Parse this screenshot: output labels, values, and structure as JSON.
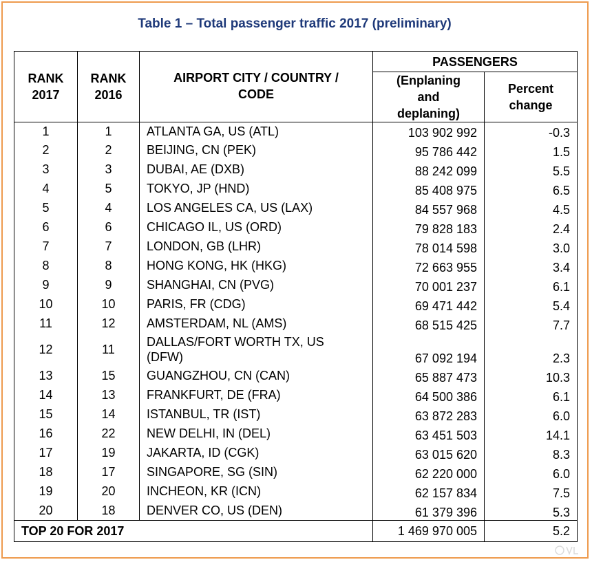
{
  "title": "Table 1 – Total passenger traffic 2017 (preliminary)",
  "headers": {
    "rank_2017": "RANK 2017",
    "rank_2017_line1": "RANK",
    "rank_2017_line2": "2017",
    "rank_2016_line1": "RANK",
    "rank_2016_line2": "2016",
    "airport_line1": "AIRPORT CITY / COUNTRY /",
    "airport_line2": "CODE",
    "passengers": "PASSENGERS",
    "enplaning_line1": "(Enplaning",
    "enplaning_line2": "and",
    "enplaning_line3": "deplaning)",
    "percent_line1": "Percent",
    "percent_line2": "change"
  },
  "rows": [
    {
      "rank2017": "1",
      "rank2016": "1",
      "city": "ATLANTA GA, US (ATL)",
      "passengers": "103 902 992",
      "pct": "-0.3"
    },
    {
      "rank2017": "2",
      "rank2016": "2",
      "city": "BEIJING, CN (PEK)",
      "passengers": "95 786 442",
      "pct": "1.5"
    },
    {
      "rank2017": "3",
      "rank2016": "3",
      "city": "DUBAI, AE (DXB)",
      "passengers": "88 242 099",
      "pct": "5.5"
    },
    {
      "rank2017": "4",
      "rank2016": "5",
      "city": "TOKYO, JP (HND)",
      "passengers": "85 408 975",
      "pct": "6.5"
    },
    {
      "rank2017": "5",
      "rank2016": "4",
      "city": "LOS ANGELES CA, US (LAX)",
      "passengers": "84 557 968",
      "pct": "4.5"
    },
    {
      "rank2017": "6",
      "rank2016": "6",
      "city": "CHICAGO IL, US (ORD)",
      "passengers": "79 828 183",
      "pct": "2.4"
    },
    {
      "rank2017": "7",
      "rank2016": "7",
      "city": "LONDON, GB (LHR)",
      "passengers": "78 014 598",
      "pct": "3.0"
    },
    {
      "rank2017": "8",
      "rank2016": "8",
      "city": "HONG KONG, HK (HKG)",
      "passengers": "72 663 955",
      "pct": "3.4"
    },
    {
      "rank2017": "9",
      "rank2016": "9",
      "city": "SHANGHAI, CN (PVG)",
      "passengers": "70 001 237",
      "pct": "6.1"
    },
    {
      "rank2017": "10",
      "rank2016": "10",
      "city": "PARIS, FR (CDG)",
      "passengers": "69 471 442",
      "pct": "5.4"
    },
    {
      "rank2017": "11",
      "rank2016": "12",
      "city": "AMSTERDAM, NL (AMS)",
      "passengers": "68 515 425",
      "pct": "7.7"
    },
    {
      "rank2017": "12",
      "rank2016": "11",
      "city_line1": "DALLAS/FORT WORTH TX, US",
      "city_line2": "(DFW)",
      "passengers": "67 092 194",
      "pct": "2.3"
    },
    {
      "rank2017": "13",
      "rank2016": "15",
      "city": "GUANGZHOU, CN (CAN)",
      "passengers": "65 887 473",
      "pct": "10.3"
    },
    {
      "rank2017": "14",
      "rank2016": "13",
      "city": "FRANKFURT, DE (FRA)",
      "passengers": "64 500 386",
      "pct": "6.1"
    },
    {
      "rank2017": "15",
      "rank2016": "14",
      "city": "ISTANBUL, TR (IST)",
      "passengers": "63 872 283",
      "pct": "6.0"
    },
    {
      "rank2017": "16",
      "rank2016": "22",
      "city": "NEW DELHI, IN (DEL)",
      "passengers": "63 451 503",
      "pct": "14.1"
    },
    {
      "rank2017": "17",
      "rank2016": "19",
      "city": "JAKARTA, ID (CGK)",
      "passengers": "63 015 620",
      "pct": "8.3"
    },
    {
      "rank2017": "18",
      "rank2016": "17",
      "city": "SINGAPORE, SG (SIN)",
      "passengers": "62 220 000",
      "pct": "6.0"
    },
    {
      "rank2017": "19",
      "rank2016": "20",
      "city": "INCHEON, KR (ICN)",
      "passengers": "62 157 834",
      "pct": "7.5"
    },
    {
      "rank2017": "20",
      "rank2016": "18",
      "city": "DENVER CO, US (DEN)",
      "passengers": "61 379 396",
      "pct": "5.3"
    }
  ],
  "footer": {
    "label": "TOP 20 FOR 2017",
    "passengers": "1 469 970 005",
    "pct": "5.2"
  },
  "colors": {
    "frame_border": "#ee9a4d",
    "title_text": "#1f3a7a"
  }
}
